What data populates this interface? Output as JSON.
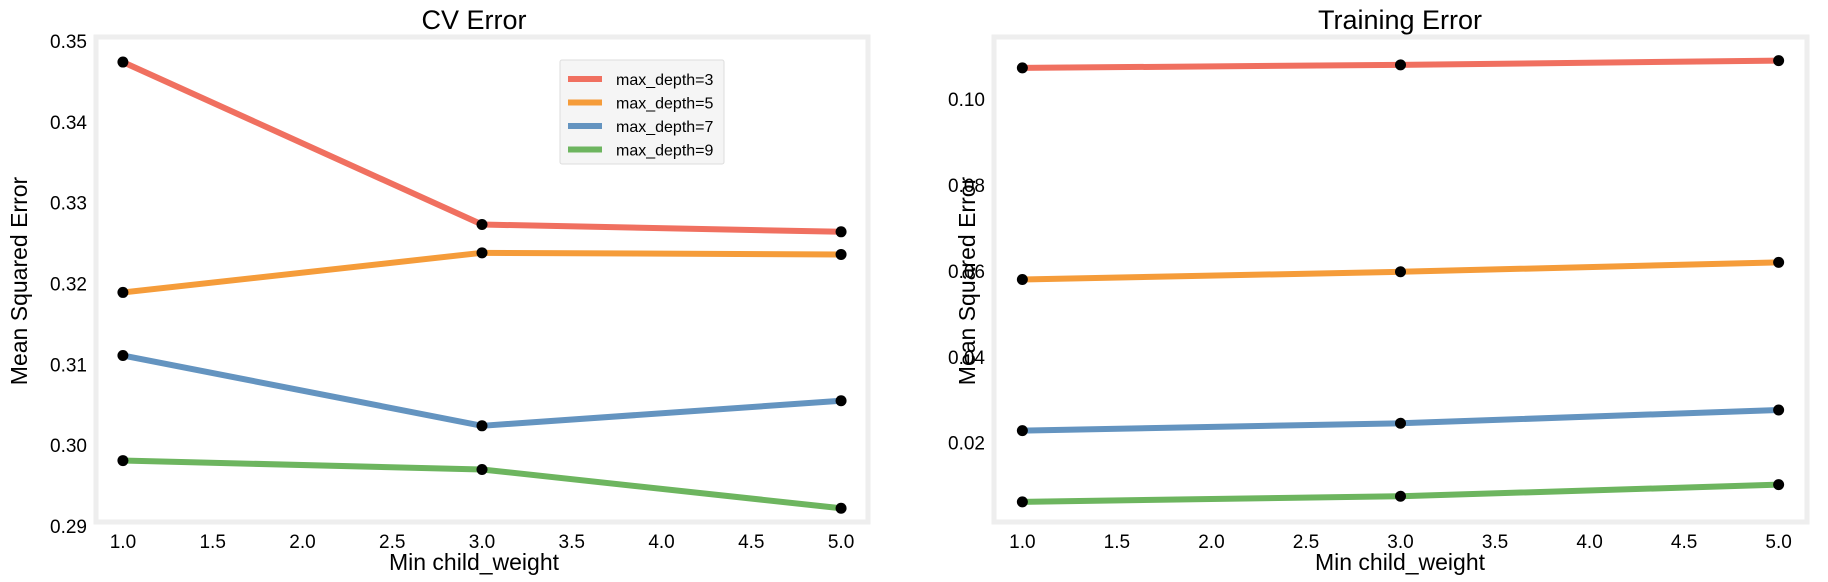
{
  "figure": {
    "marker_color": "#000000",
    "frame_color": "#eeeeee",
    "background": "#ffffff"
  },
  "chart_data": [
    {
      "type": "line",
      "title": "CV Error",
      "xlabel": "Min child_weight",
      "ylabel": "Mean Squared Error",
      "x": [
        1.0,
        3.0,
        5.0
      ],
      "xlim": [
        0.85,
        5.15
      ],
      "ylim": [
        0.2905,
        0.3505
      ],
      "xticks": [
        1.0,
        1.5,
        2.0,
        2.5,
        3.0,
        3.5,
        4.0,
        4.5,
        5.0
      ],
      "xtick_labels": [
        "1.0",
        "1.5",
        "2.0",
        "2.5",
        "3.0",
        "3.5",
        "4.0",
        "4.5",
        "5.0"
      ],
      "yticks": [
        0.29,
        0.3,
        0.31,
        0.32,
        0.33,
        0.34,
        0.35
      ],
      "ytick_labels": [
        "0.29",
        "0.30",
        "0.31",
        "0.32",
        "0.33",
        "0.34",
        "0.35"
      ],
      "grid": false,
      "legend": {
        "placement": "top-right"
      },
      "series": [
        {
          "name": "max_depth=3",
          "color": "#f07060",
          "values": [
            0.3474,
            0.3273,
            0.3264
          ]
        },
        {
          "name": "max_depth=5",
          "color": "#f59c3a",
          "values": [
            0.3189,
            0.3238,
            0.3236
          ]
        },
        {
          "name": "max_depth=7",
          "color": "#6494c0",
          "values": [
            0.3111,
            0.3024,
            0.3055
          ]
        },
        {
          "name": "max_depth=9",
          "color": "#6db55f",
          "values": [
            0.2981,
            0.297,
            0.2922
          ]
        }
      ]
    },
    {
      "type": "line",
      "title": "Training Error",
      "xlabel": "Min child_weight",
      "ylabel": "Mean Squared Error",
      "x": [
        1.0,
        3.0,
        5.0
      ],
      "xlim": [
        0.85,
        5.15
      ],
      "ylim": [
        0.0015,
        0.1145
      ],
      "xticks": [
        1.0,
        1.5,
        2.0,
        2.5,
        3.0,
        3.5,
        4.0,
        4.5,
        5.0
      ],
      "xtick_labels": [
        "1.0",
        "1.5",
        "2.0",
        "2.5",
        "3.0",
        "3.5",
        "4.0",
        "4.5",
        "5.0"
      ],
      "yticks": [
        0.02,
        0.04,
        0.06,
        0.08,
        0.1
      ],
      "ytick_labels": [
        "0.02",
        "0.04",
        "0.06",
        "0.08",
        "0.10"
      ],
      "grid": false,
      "series": [
        {
          "color": "#f07060",
          "values": [
            0.1073,
            0.108,
            0.109
          ]
        },
        {
          "color": "#f59c3a",
          "values": [
            0.058,
            0.0598,
            0.062
          ]
        },
        {
          "color": "#6494c0",
          "values": [
            0.0228,
            0.0245,
            0.0276
          ]
        },
        {
          "color": "#6db55f",
          "values": [
            0.0062,
            0.0075,
            0.0102
          ]
        }
      ]
    }
  ]
}
